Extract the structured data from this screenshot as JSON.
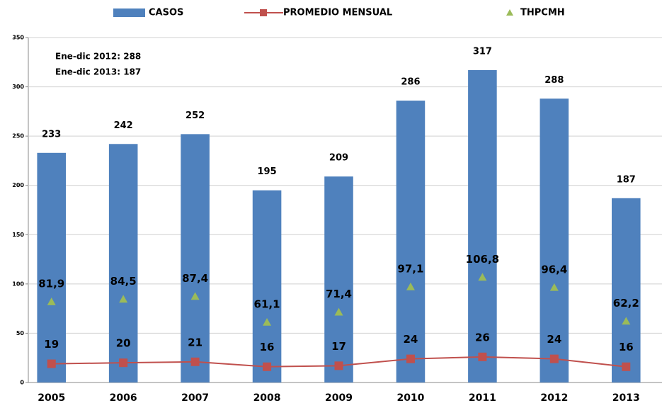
{
  "chart_data": {
    "type": "bar",
    "categories": [
      "2005",
      "2006",
      "2007",
      "2008",
      "2009",
      "2010",
      "2011",
      "2012",
      "2013"
    ],
    "series": [
      {
        "name": "CASOS",
        "type": "bar",
        "color": "#4f81bd",
        "values": [
          233,
          242,
          252,
          195,
          209,
          286,
          317,
          288,
          187
        ]
      },
      {
        "name": "PROMEDIO MENSUAL",
        "type": "line",
        "color": "#c0504d",
        "values": [
          19,
          20,
          21,
          16,
          17,
          24,
          26,
          24,
          16
        ]
      },
      {
        "name": "THPCMH",
        "type": "scatter",
        "color": "#9bbb59",
        "values": [
          81.9,
          84.5,
          87.4,
          61.1,
          71.4,
          97.1,
          106.8,
          96.4,
          62.2
        ],
        "value_labels": [
          "81,9",
          "84,5",
          "87,4",
          "61,1",
          "71,4",
          "97,1",
          "106,8",
          "96,4",
          "62,2"
        ]
      }
    ],
    "annotations": [
      "Ene-dic 2012: 288",
      "Ene-dic 2013: 187"
    ],
    "ylim": [
      0,
      350
    ],
    "yticks": [
      0,
      50,
      100,
      150,
      200,
      250,
      300,
      350
    ],
    "grid": true,
    "legend": "top"
  }
}
